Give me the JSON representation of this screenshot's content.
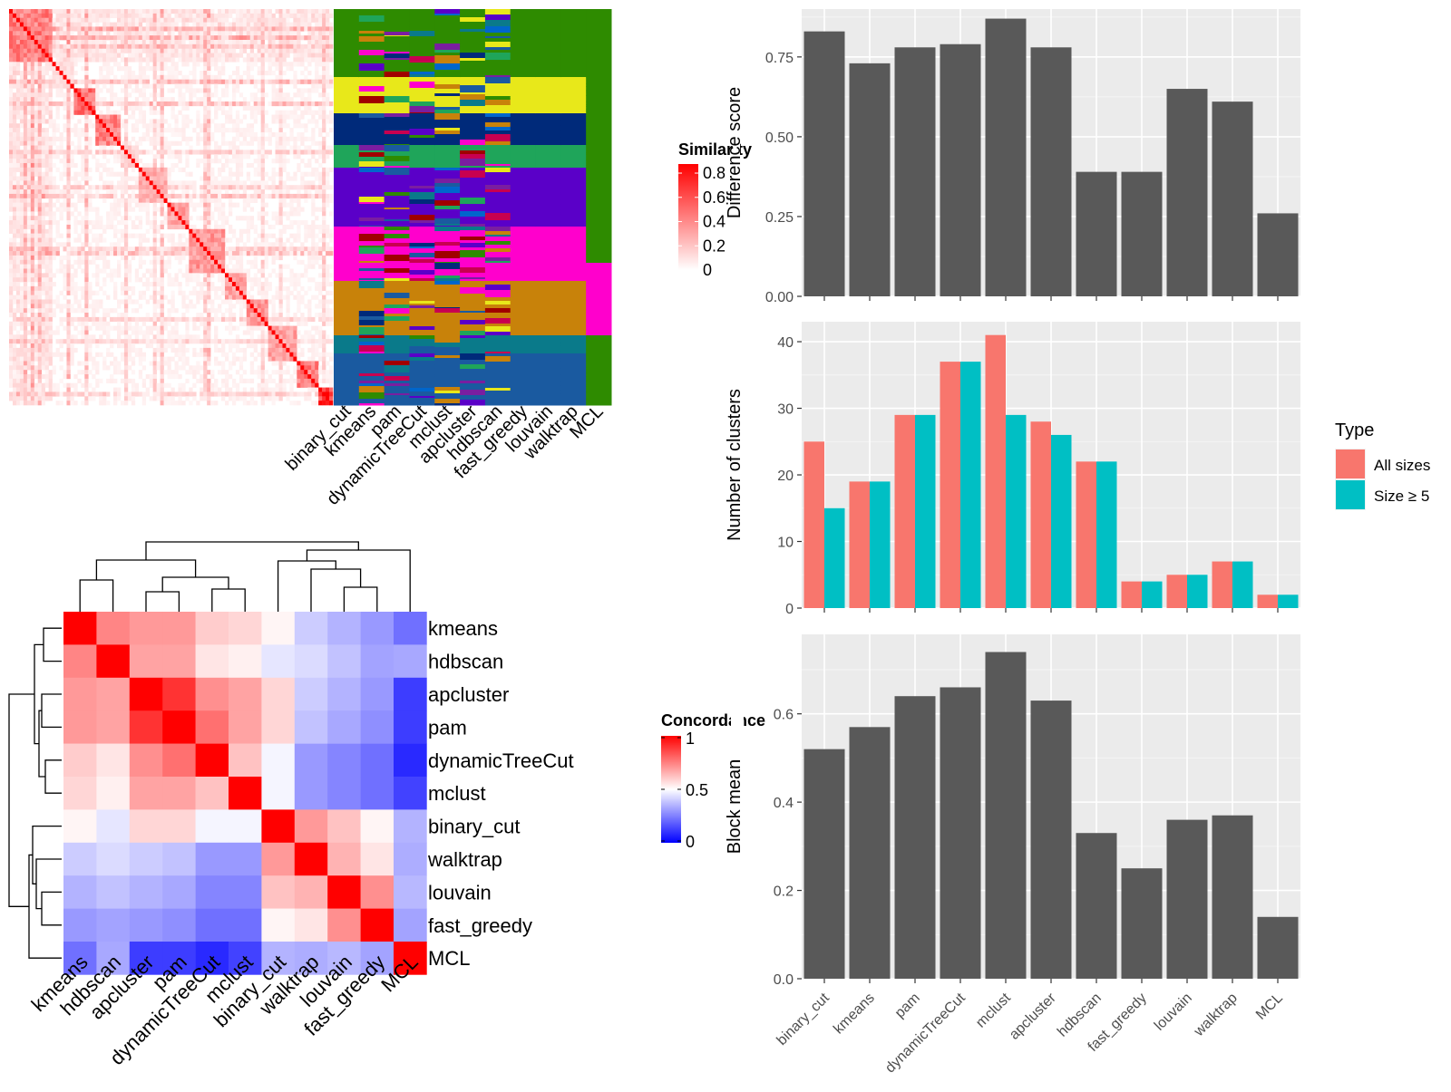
{
  "chart_data": [
    {
      "type": "heatmap",
      "subtype": "similarity-matrix-with-cluster-labels",
      "legend_title": "Similarity",
      "legend_ticks": [
        "0",
        "0.2",
        "0.4",
        "0.6",
        "0.8"
      ],
      "color_low": "#ffffff",
      "color_high": "#ff0000",
      "label_columns": [
        "binary_cut",
        "kmeans",
        "pam",
        "dynamicTreeCut",
        "mclust",
        "apcluster",
        "hdbscan",
        "fast_greedy",
        "louvain",
        "walktrap",
        "MCL"
      ]
    },
    {
      "type": "heatmap",
      "legend_title": "Concordance",
      "legend_ticks": [
        "0",
        "0.5",
        "1"
      ],
      "color_low": "#0000ff",
      "color_mid": "#ffffff",
      "color_high": "#ff0000",
      "rows": [
        "kmeans",
        "hdbscan",
        "apcluster",
        "pam",
        "dynamicTreeCut",
        "mclust",
        "binary_cut",
        "walktrap",
        "louvain",
        "fast_greedy",
        "MCL"
      ],
      "columns": [
        "kmeans",
        "hdbscan",
        "apcluster",
        "pam",
        "dynamicTreeCut",
        "mclust",
        "binary_cut",
        "walktrap",
        "louvain",
        "fast_greedy",
        "MCL"
      ],
      "values": [
        [
          1.0,
          0.74,
          0.7,
          0.7,
          0.6,
          0.58,
          0.52,
          0.4,
          0.35,
          0.3,
          0.22
        ],
        [
          0.74,
          1.0,
          0.68,
          0.68,
          0.55,
          0.53,
          0.45,
          0.43,
          0.38,
          0.32,
          0.33
        ],
        [
          0.7,
          0.68,
          1.0,
          0.9,
          0.72,
          0.68,
          0.58,
          0.4,
          0.35,
          0.3,
          0.12
        ],
        [
          0.7,
          0.68,
          0.9,
          1.0,
          0.78,
          0.68,
          0.58,
          0.38,
          0.33,
          0.28,
          0.12
        ],
        [
          0.6,
          0.55,
          0.72,
          0.78,
          1.0,
          0.62,
          0.48,
          0.3,
          0.26,
          0.22,
          0.08
        ],
        [
          0.58,
          0.53,
          0.68,
          0.68,
          0.62,
          1.0,
          0.48,
          0.3,
          0.26,
          0.22,
          0.13
        ],
        [
          0.52,
          0.45,
          0.58,
          0.58,
          0.48,
          0.48,
          1.0,
          0.7,
          0.62,
          0.52,
          0.35
        ],
        [
          0.4,
          0.43,
          0.4,
          0.38,
          0.3,
          0.3,
          0.7,
          1.0,
          0.65,
          0.55,
          0.34
        ],
        [
          0.35,
          0.38,
          0.35,
          0.33,
          0.26,
          0.26,
          0.62,
          0.65,
          1.0,
          0.72,
          0.36
        ],
        [
          0.3,
          0.32,
          0.3,
          0.28,
          0.22,
          0.22,
          0.52,
          0.55,
          0.72,
          1.0,
          0.32
        ],
        [
          0.22,
          0.33,
          0.12,
          0.12,
          0.08,
          0.13,
          0.35,
          0.34,
          0.36,
          0.32,
          1.0
        ]
      ]
    },
    {
      "type": "bar",
      "categories": [
        "binary_cut",
        "kmeans",
        "pam",
        "dynamicTreeCut",
        "mclust",
        "apcluster",
        "hdbscan",
        "fast_greedy",
        "louvain",
        "walktrap",
        "MCL"
      ],
      "values": [
        0.83,
        0.73,
        0.78,
        0.79,
        0.87,
        0.78,
        0.39,
        0.39,
        0.65,
        0.61,
        0.26
      ],
      "ylabel": "Difference score",
      "ylim": [
        0,
        0.9
      ],
      "yticks": [
        0.0,
        0.25,
        0.5,
        0.75
      ],
      "yticklabels": [
        "0.00",
        "0.25",
        "0.50",
        "0.75"
      ],
      "color": "#595959"
    },
    {
      "type": "bar",
      "categories": [
        "binary_cut",
        "kmeans",
        "pam",
        "dynamicTreeCut",
        "mclust",
        "apcluster",
        "hdbscan",
        "fast_greedy",
        "louvain",
        "walktrap",
        "MCL"
      ],
      "series": [
        {
          "name": "All sizes",
          "color": "#f8766d",
          "values": [
            25,
            19,
            29,
            37,
            41,
            28,
            22,
            4,
            5,
            7,
            2
          ]
        },
        {
          "name": "Size ≥ 5",
          "color": "#00bfc4",
          "values": [
            15,
            19,
            29,
            37,
            29,
            26,
            22,
            4,
            5,
            7,
            2
          ]
        }
      ],
      "ylabel": "Number of clusters",
      "ylim": [
        0,
        43
      ],
      "yticks": [
        0,
        10,
        20,
        30,
        40
      ],
      "legend_title": "Type",
      "legend_position": "right"
    },
    {
      "type": "bar",
      "categories": [
        "binary_cut",
        "kmeans",
        "pam",
        "dynamicTreeCut",
        "mclust",
        "apcluster",
        "hdbscan",
        "fast_greedy",
        "louvain",
        "walktrap",
        "MCL"
      ],
      "values": [
        0.52,
        0.57,
        0.64,
        0.66,
        0.74,
        0.63,
        0.33,
        0.25,
        0.36,
        0.37,
        0.14
      ],
      "ylabel": "Block mean",
      "ylim": [
        0,
        0.78
      ],
      "yticks": [
        0.0,
        0.2,
        0.4,
        0.6
      ],
      "yticklabels": [
        "0.0",
        "0.2",
        "0.4",
        "0.6"
      ],
      "color": "#595959"
    }
  ]
}
